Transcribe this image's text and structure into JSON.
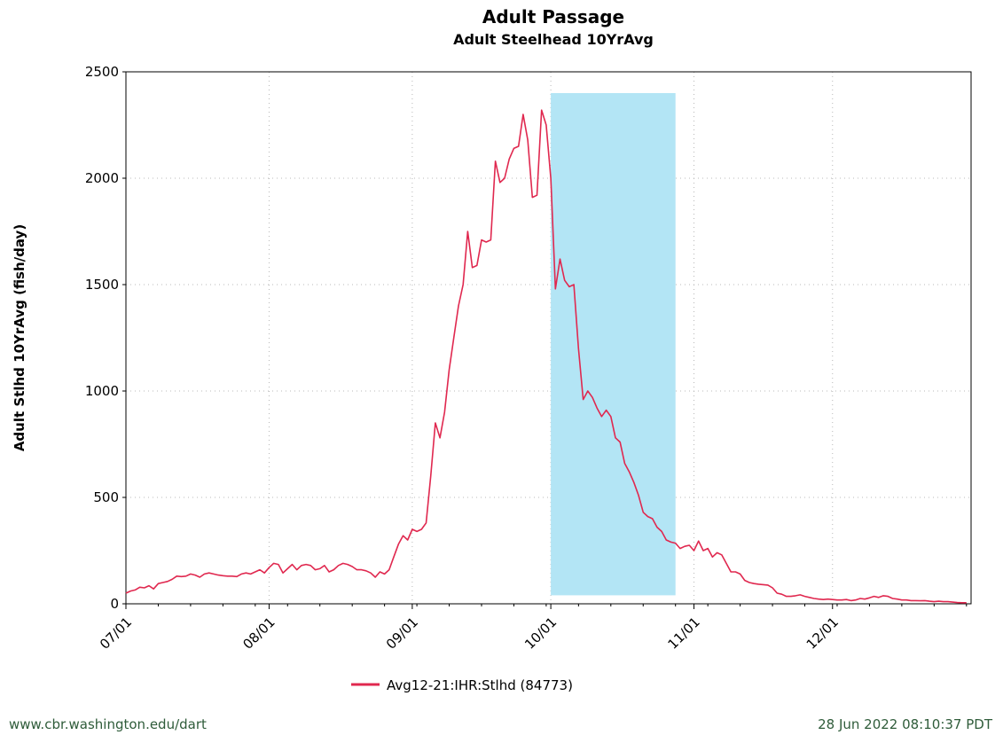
{
  "chart_data": {
    "type": "line",
    "title": "Adult Passage",
    "subtitle": "Adult Steelhead 10YrAvg",
    "ylabel": "Adult Stlhd 10YrAvg (fish/day)",
    "xlabel": "",
    "x_ticks": [
      "07/01",
      "08/01",
      "09/01",
      "10/01",
      "11/01",
      "12/01"
    ],
    "x_tick_days": [
      0,
      31,
      62,
      92,
      123,
      153
    ],
    "x_range_days": [
      0,
      183
    ],
    "y_ticks": [
      0,
      500,
      1000,
      1500,
      2000,
      2500
    ],
    "ylim": [
      0,
      2500
    ],
    "grid": true,
    "legend_position": "bottom",
    "highlight": {
      "start_day": 92,
      "end_day": 119,
      "top": 2400,
      "bottom": 40,
      "color": "#b3e5f5"
    },
    "series": [
      {
        "name": "Avg12-21:IHR:Stlhd (84773)",
        "color": "#e0284f",
        "points": [
          [
            0,
            50
          ],
          [
            1,
            60
          ],
          [
            2,
            65
          ],
          [
            3,
            78
          ],
          [
            4,
            75
          ],
          [
            5,
            85
          ],
          [
            6,
            70
          ],
          [
            7,
            95
          ],
          [
            8,
            100
          ],
          [
            9,
            105
          ],
          [
            10,
            115
          ],
          [
            11,
            130
          ],
          [
            12,
            128
          ],
          [
            13,
            130
          ],
          [
            14,
            140
          ],
          [
            15,
            135
          ],
          [
            16,
            125
          ],
          [
            17,
            140
          ],
          [
            18,
            145
          ],
          [
            19,
            140
          ],
          [
            20,
            135
          ],
          [
            21,
            132
          ],
          [
            22,
            130
          ],
          [
            23,
            130
          ],
          [
            24,
            128
          ],
          [
            25,
            140
          ],
          [
            26,
            145
          ],
          [
            27,
            140
          ],
          [
            28,
            150
          ],
          [
            29,
            160
          ],
          [
            30,
            145
          ],
          [
            31,
            170
          ],
          [
            32,
            190
          ],
          [
            33,
            185
          ],
          [
            34,
            145
          ],
          [
            35,
            165
          ],
          [
            36,
            185
          ],
          [
            37,
            160
          ],
          [
            38,
            180
          ],
          [
            39,
            185
          ],
          [
            40,
            180
          ],
          [
            41,
            160
          ],
          [
            42,
            165
          ],
          [
            43,
            180
          ],
          [
            44,
            150
          ],
          [
            45,
            160
          ],
          [
            46,
            180
          ],
          [
            47,
            190
          ],
          [
            48,
            185
          ],
          [
            49,
            175
          ],
          [
            50,
            160
          ],
          [
            51,
            160
          ],
          [
            52,
            155
          ],
          [
            53,
            145
          ],
          [
            54,
            125
          ],
          [
            55,
            150
          ],
          [
            56,
            140
          ],
          [
            57,
            160
          ],
          [
            58,
            220
          ],
          [
            59,
            280
          ],
          [
            60,
            320
          ],
          [
            61,
            300
          ],
          [
            62,
            350
          ],
          [
            63,
            340
          ],
          [
            64,
            350
          ],
          [
            65,
            380
          ],
          [
            66,
            600
          ],
          [
            67,
            850
          ],
          [
            68,
            780
          ],
          [
            69,
            900
          ],
          [
            70,
            1100
          ],
          [
            71,
            1250
          ],
          [
            72,
            1400
          ],
          [
            73,
            1500
          ],
          [
            74,
            1750
          ],
          [
            75,
            1580
          ],
          [
            76,
            1590
          ],
          [
            77,
            1710
          ],
          [
            78,
            1700
          ],
          [
            79,
            1710
          ],
          [
            80,
            2080
          ],
          [
            81,
            1980
          ],
          [
            82,
            2000
          ],
          [
            83,
            2090
          ],
          [
            84,
            2140
          ],
          [
            85,
            2150
          ],
          [
            86,
            2300
          ],
          [
            87,
            2180
          ],
          [
            88,
            1910
          ],
          [
            89,
            1920
          ],
          [
            90,
            2320
          ],
          [
            91,
            2250
          ],
          [
            92,
            2000
          ],
          [
            93,
            1480
          ],
          [
            94,
            1620
          ],
          [
            95,
            1520
          ],
          [
            96,
            1490
          ],
          [
            97,
            1500
          ],
          [
            98,
            1200
          ],
          [
            99,
            960
          ],
          [
            100,
            1000
          ],
          [
            101,
            970
          ],
          [
            102,
            920
          ],
          [
            103,
            880
          ],
          [
            104,
            910
          ],
          [
            105,
            880
          ],
          [
            106,
            780
          ],
          [
            107,
            760
          ],
          [
            108,
            660
          ],
          [
            109,
            620
          ],
          [
            110,
            570
          ],
          [
            111,
            510
          ],
          [
            112,
            430
          ],
          [
            113,
            410
          ],
          [
            114,
            400
          ],
          [
            115,
            360
          ],
          [
            116,
            340
          ],
          [
            117,
            300
          ],
          [
            118,
            290
          ],
          [
            119,
            285
          ],
          [
            120,
            260
          ],
          [
            121,
            270
          ],
          [
            122,
            275
          ],
          [
            123,
            250
          ],
          [
            124,
            295
          ],
          [
            125,
            250
          ],
          [
            126,
            260
          ],
          [
            127,
            220
          ],
          [
            128,
            240
          ],
          [
            129,
            230
          ],
          [
            130,
            190
          ],
          [
            131,
            150
          ],
          [
            132,
            150
          ],
          [
            133,
            140
          ],
          [
            134,
            110
          ],
          [
            135,
            100
          ],
          [
            136,
            95
          ],
          [
            137,
            92
          ],
          [
            138,
            90
          ],
          [
            139,
            88
          ],
          [
            140,
            75
          ],
          [
            141,
            50
          ],
          [
            142,
            45
          ],
          [
            143,
            35
          ],
          [
            144,
            35
          ],
          [
            145,
            38
          ],
          [
            146,
            42
          ],
          [
            147,
            35
          ],
          [
            148,
            30
          ],
          [
            149,
            25
          ],
          [
            150,
            22
          ],
          [
            151,
            20
          ],
          [
            152,
            22
          ],
          [
            153,
            20
          ],
          [
            154,
            18
          ],
          [
            155,
            18
          ],
          [
            156,
            20
          ],
          [
            157,
            15
          ],
          [
            158,
            18
          ],
          [
            159,
            25
          ],
          [
            160,
            22
          ],
          [
            161,
            28
          ],
          [
            162,
            35
          ],
          [
            163,
            30
          ],
          [
            164,
            38
          ],
          [
            165,
            35
          ],
          [
            166,
            25
          ],
          [
            167,
            22
          ],
          [
            168,
            18
          ],
          [
            169,
            18
          ],
          [
            170,
            15
          ],
          [
            171,
            15
          ],
          [
            172,
            14
          ],
          [
            173,
            15
          ],
          [
            174,
            12
          ],
          [
            175,
            10
          ],
          [
            176,
            12
          ],
          [
            177,
            10
          ],
          [
            178,
            10
          ],
          [
            179,
            8
          ],
          [
            180,
            6
          ],
          [
            181,
            5
          ],
          [
            182,
            5
          ]
        ]
      }
    ]
  },
  "footer": {
    "left": "www.cbr.washington.edu/dart",
    "right": "28 Jun 2022 08:10:37 PDT"
  }
}
